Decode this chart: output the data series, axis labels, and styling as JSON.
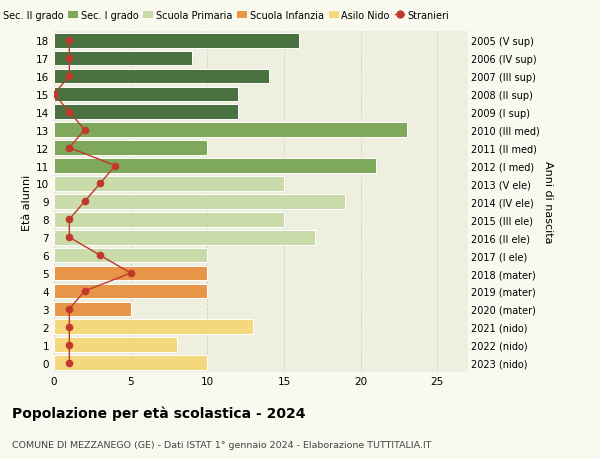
{
  "ages": [
    0,
    1,
    2,
    3,
    4,
    5,
    6,
    7,
    8,
    9,
    10,
    11,
    12,
    13,
    14,
    15,
    16,
    17,
    18
  ],
  "bar_values": [
    10,
    8,
    13,
    5,
    10,
    10,
    10,
    17,
    15,
    19,
    15,
    21,
    10,
    23,
    12,
    12,
    14,
    9,
    16
  ],
  "right_labels": [
    "2023 (nido)",
    "2022 (nido)",
    "2021 (nido)",
    "2020 (mater)",
    "2019 (mater)",
    "2018 (mater)",
    "2017 (I ele)",
    "2016 (II ele)",
    "2015 (III ele)",
    "2014 (IV ele)",
    "2013 (V ele)",
    "2012 (I med)",
    "2011 (II med)",
    "2010 (III med)",
    "2009 (I sup)",
    "2008 (II sup)",
    "2007 (III sup)",
    "2006 (IV sup)",
    "2005 (V sup)"
  ],
  "stranieri": [
    1,
    1,
    1,
    1,
    2,
    5,
    3,
    1,
    1,
    2,
    3,
    4,
    1,
    2,
    1,
    0,
    1,
    1,
    1
  ],
  "legend_labels": [
    "Sec. II grado",
    "Sec. I grado",
    "Scuola Primaria",
    "Scuola Infanzia",
    "Asilo Nido",
    "Stranieri"
  ],
  "legend_colors": [
    "#4a7140",
    "#7ea85a",
    "#c8dba8",
    "#e8954a",
    "#f5d87e",
    "#c0392b"
  ],
  "title": "Popolazione per età scolastica - 2024",
  "subtitle": "COMUNE DI MEZZANEGO (GE) - Dati ISTAT 1° gennaio 2024 - Elaborazione TUTTITALIA.IT",
  "ylabel_left": "Età alunni",
  "ylabel_right": "Anni di nascita",
  "xlim": [
    0,
    27
  ],
  "background_color": "#f9f9f0",
  "bar_bg_color": "#efefdf",
  "grid_color": "#cccccc",
  "bar_height": 0.82
}
